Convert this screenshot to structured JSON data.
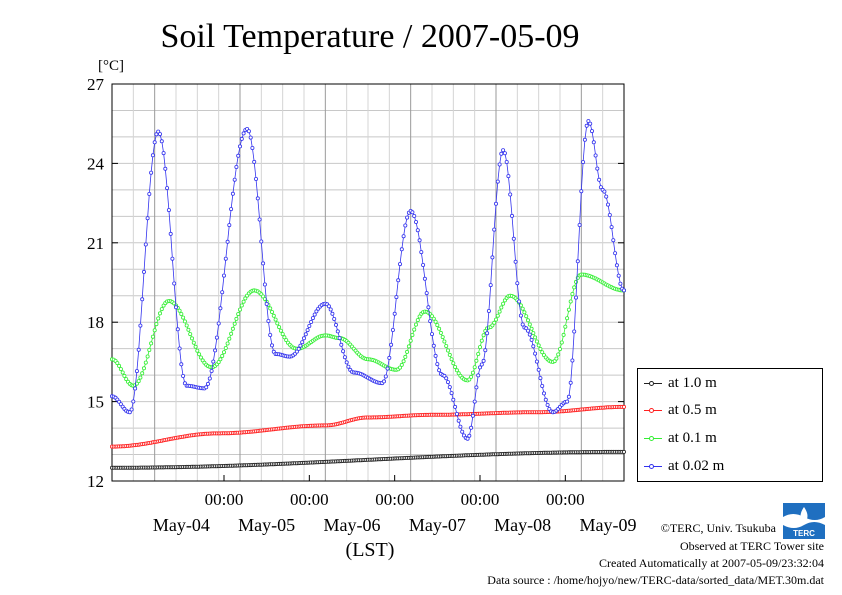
{
  "chart_data": {
    "type": "line",
    "title": "Soil Temperature / 2007-05-09",
    "ylabel": "[°C]",
    "xlabel": "(LST)",
    "ylim": [
      12,
      27
    ],
    "yticks": [
      "12",
      "15",
      "18",
      "21",
      "24",
      "27"
    ],
    "time_labels": [
      "00:00",
      "00:00",
      "00:00",
      "00:00",
      "00:00"
    ],
    "date_labels": [
      "May-04",
      "May-05",
      "May-06",
      "May-07",
      "May-08",
      "May-09"
    ],
    "x_range_hours": [
      0,
      144
    ],
    "grid": true,
    "legend_position": "bottom-right",
    "series": [
      {
        "name": "at 1.0 m",
        "color": "#222222",
        "x": [
          0,
          144
        ],
        "values": [
          12.5,
          13.1
        ]
      },
      {
        "name": "at 0.5 m",
        "color": "#ff2020",
        "x": [
          0,
          30,
          60,
          72,
          90,
          120,
          144
        ],
        "values": [
          13.3,
          13.8,
          14.1,
          14.4,
          14.5,
          14.6,
          14.8
        ]
      },
      {
        "name": "at 0.1 m",
        "color": "#33ee33",
        "x": [
          0,
          6,
          16,
          28,
          40,
          52,
          60,
          64,
          72,
          80,
          88,
          100,
          106,
          112,
          124,
          132,
          144
        ],
        "values": [
          16.6,
          15.6,
          18.8,
          16.3,
          19.2,
          17.0,
          17.5,
          17.4,
          16.6,
          16.2,
          18.4,
          15.8,
          17.8,
          19.0,
          16.5,
          19.8,
          19.2
        ]
      },
      {
        "name": "at 0.02 m",
        "color": "#3333ee",
        "x": [
          0,
          5,
          13,
          21,
          26,
          38,
          46,
          50,
          60,
          68,
          76,
          84,
          93,
          100,
          104,
          110,
          116,
          124,
          128,
          134,
          138,
          144
        ],
        "values": [
          15.2,
          14.6,
          25.2,
          15.6,
          15.5,
          25.3,
          16.8,
          16.7,
          18.7,
          16.1,
          15.7,
          22.2,
          16.0,
          13.6,
          16.4,
          24.5,
          17.8,
          14.6,
          15.0,
          25.6,
          23.0,
          19.2
        ]
      }
    ]
  },
  "footer": {
    "copyright": "©TERC, Univ. Tsukuba",
    "observed": "Observed at TERC Tower site",
    "created": "Created Automatically at 2007-05-09/23:32:04",
    "source": "Data source : /home/hojyo/new/TERC-data/sorted_data/MET.30m.dat"
  },
  "logo_text": "TERC"
}
